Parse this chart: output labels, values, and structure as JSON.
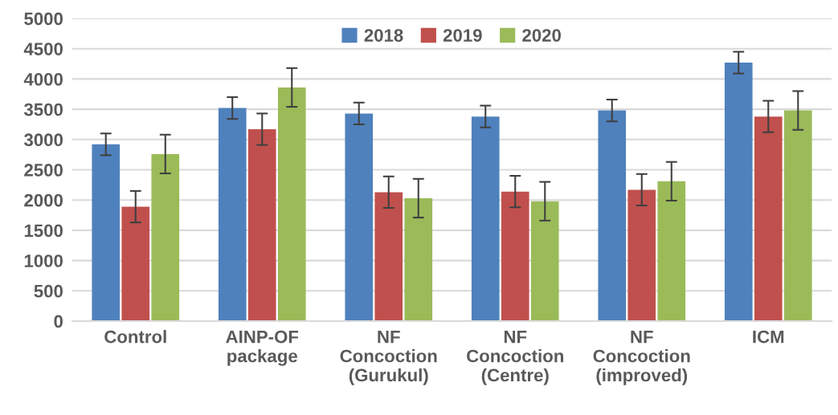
{
  "chart_data": {
    "type": "bar",
    "categories": [
      "Control",
      "AINP-OF\npackage",
      "NF\nConcoction\n(Gurukul)",
      "NF\nConcoction\n(Centre)",
      "NF\nConcoction\n(improved)",
      "ICM"
    ],
    "series": [
      {
        "name": "2018",
        "color": "#4f81bd",
        "values": [
          2920,
          3520,
          3430,
          3380,
          3480,
          4270
        ],
        "errors": [
          180,
          180,
          180,
          180,
          180,
          180
        ]
      },
      {
        "name": "2019",
        "color": "#c0504d",
        "values": [
          1890,
          3170,
          2130,
          2140,
          2170,
          3380
        ],
        "errors": [
          260,
          260,
          260,
          260,
          260,
          260
        ]
      },
      {
        "name": "2020",
        "color": "#9bbb59",
        "values": [
          2760,
          3860,
          2030,
          1980,
          2310,
          3480
        ],
        "errors": [
          320,
          320,
          320,
          320,
          320,
          320
        ]
      }
    ],
    "ylim": [
      0,
      5000
    ],
    "yticks": [
      0,
      500,
      1000,
      1500,
      2000,
      2500,
      3000,
      3500,
      4000,
      4500,
      5000
    ],
    "grid": "y",
    "legend": "top"
  }
}
